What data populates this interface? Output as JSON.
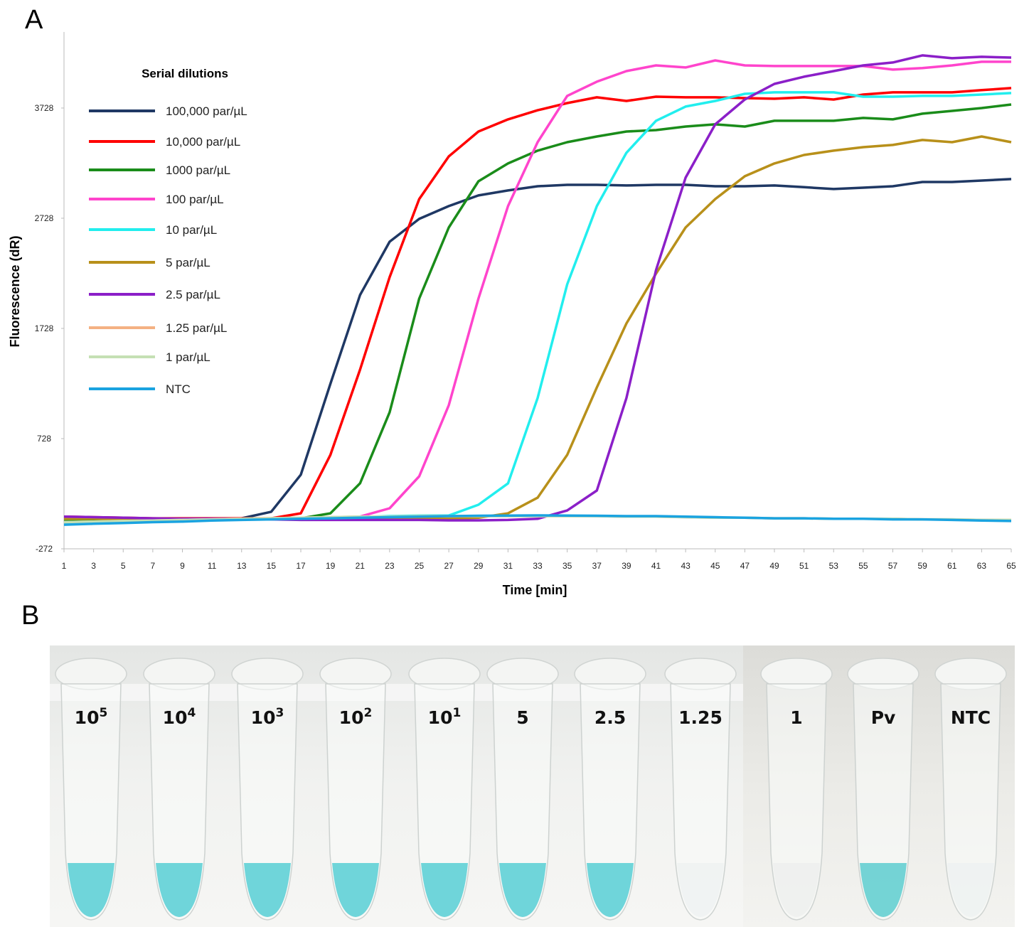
{
  "panel_labels": [
    "A",
    "B"
  ],
  "chart_data": {
    "type": "line",
    "xlabel": "Time  [min]",
    "ylabel": "Fluorescence  (dR)",
    "legend_title": "Serial dilutions",
    "x": [
      1,
      3,
      5,
      7,
      9,
      11,
      13,
      15,
      17,
      19,
      21,
      23,
      25,
      27,
      29,
      31,
      33,
      35,
      37,
      39,
      41,
      43,
      45,
      47,
      49,
      51,
      53,
      55,
      57,
      59,
      61,
      63,
      65
    ],
    "xlim": [
      1,
      65
    ],
    "xticks": [
      1,
      3,
      5,
      7,
      9,
      11,
      13,
      15,
      17,
      19,
      21,
      23,
      25,
      27,
      29,
      31,
      33,
      35,
      37,
      39,
      41,
      43,
      45,
      47,
      49,
      51,
      53,
      55,
      57,
      59,
      61,
      63,
      65
    ],
    "ylim": [
      -272,
      4418
    ],
    "yticks": [
      -272,
      728,
      1728,
      2728,
      3728
    ],
    "series": [
      {
        "name": "100,000 par/µL",
        "color": "#1f3864",
        "values": [
          -30,
          -20,
          -10,
          -5,
          0,
          0,
          5,
          64,
          400,
          1225,
          2031,
          2515,
          2722,
          2838,
          2935,
          2980,
          3018,
          3031,
          3031,
          3025,
          3031,
          3031,
          3018,
          3018,
          3025,
          3010,
          2993,
          3005,
          3018,
          3057,
          3057,
          3070,
          3083
        ]
      },
      {
        "name": "10,000 par/µL",
        "color": "#ff0000",
        "values": [
          20,
          15,
          10,
          5,
          5,
          5,
          5,
          5,
          50,
          580,
          1354,
          2193,
          2902,
          3289,
          3515,
          3625,
          3708,
          3773,
          3825,
          3792,
          3831,
          3825,
          3825,
          3818,
          3812,
          3825,
          3805,
          3850,
          3870,
          3870,
          3870,
          3890,
          3909
        ]
      },
      {
        "name": "1000 par/µL",
        "color": "#1a8c1a",
        "values": [
          -20,
          -10,
          0,
          0,
          0,
          0,
          0,
          0,
          5,
          50,
          322,
          967,
          1999,
          2644,
          3063,
          3225,
          3341,
          3418,
          3470,
          3515,
          3528,
          3560,
          3580,
          3560,
          3612,
          3612,
          3612,
          3638,
          3625,
          3677,
          3702,
          3728,
          3760
        ]
      },
      {
        "name": "100 par/µL",
        "color": "#ff44cc",
        "values": [
          0,
          0,
          0,
          0,
          0,
          0,
          0,
          0,
          0,
          0,
          20,
          96,
          386,
          1031,
          1999,
          2838,
          3418,
          3838,
          3967,
          4063,
          4115,
          4096,
          4160,
          4115,
          4109,
          4109,
          4109,
          4109,
          4077,
          4090,
          4115,
          4148,
          4148
        ]
      },
      {
        "name": "10 par/µL",
        "color": "#22eeee",
        "values": [
          -40,
          -30,
          -20,
          -15,
          -10,
          -5,
          0,
          5,
          10,
          10,
          15,
          25,
          30,
          30,
          128,
          322,
          1096,
          2128,
          2838,
          3322,
          3612,
          3741,
          3792,
          3857,
          3870,
          3870,
          3870,
          3831,
          3831,
          3838,
          3838,
          3850,
          3864
        ]
      },
      {
        "name": "5 par/µL",
        "color": "#b8901a",
        "values": [
          0,
          0,
          0,
          0,
          0,
          0,
          0,
          0,
          0,
          0,
          0,
          0,
          0,
          0,
          10,
          50,
          192,
          580,
          1193,
          1773,
          2225,
          2644,
          2902,
          3109,
          3225,
          3302,
          3341,
          3373,
          3393,
          3438,
          3418,
          3470,
          3418
        ]
      },
      {
        "name": "2.5 par/µL",
        "color": "#8b1fc8",
        "values": [
          20,
          15,
          10,
          5,
          0,
          0,
          0,
          -5,
          -10,
          -10,
          -10,
          -10,
          -10,
          -14,
          -14,
          -10,
          0,
          76,
          257,
          1096,
          2257,
          3096,
          3580,
          3806,
          3947,
          4012,
          4063,
          4115,
          4141,
          4206,
          4180,
          4193,
          4186
        ]
      },
      {
        "name": "1.25 par/µL",
        "color": "#f4b183",
        "values": [
          -30,
          -25,
          -20,
          -15,
          -10,
          -5,
          0,
          5,
          10,
          15,
          20,
          20,
          25,
          25,
          25,
          25,
          25,
          25,
          25,
          20,
          20,
          15,
          10,
          10,
          5,
          5,
          0,
          0,
          0,
          -5,
          -5,
          -10,
          -10
        ]
      },
      {
        "name": "1  par/µL",
        "color": "#c5e0b4",
        "values": [
          -30,
          -25,
          -20,
          -15,
          -10,
          -5,
          0,
          5,
          10,
          15,
          20,
          20,
          25,
          25,
          25,
          25,
          25,
          25,
          25,
          20,
          20,
          15,
          10,
          10,
          5,
          5,
          0,
          0,
          0,
          -5,
          -5,
          -10,
          -10
        ]
      },
      {
        "name": "NTC",
        "color": "#1aa3e0",
        "values": [
          -53,
          -45,
          -38,
          -30,
          -25,
          -15,
          -10,
          -5,
          0,
          5,
          10,
          15,
          20,
          25,
          28,
          30,
          31,
          30,
          28,
          25,
          25,
          20,
          15,
          10,
          5,
          5,
          0,
          0,
          -5,
          -5,
          -10,
          -15,
          -20
        ]
      }
    ]
  },
  "photo": {
    "tubes": [
      {
        "text": "10",
        "sup": "5",
        "color": "#5fd0d6"
      },
      {
        "text": "10",
        "sup": "4",
        "color": "#5fd0d6"
      },
      {
        "text": "10",
        "sup": "3",
        "color": "#5fd0d6"
      },
      {
        "text": "10",
        "sup": "2",
        "color": "#5fd0d6"
      },
      {
        "text": "10",
        "sup": "1",
        "color": "#5fd0d6"
      },
      {
        "text": "5",
        "color": "#5fd0d6"
      },
      {
        "text": "2.5",
        "color": "#5fd0d6"
      },
      {
        "text": "1.25",
        "color": "#eef2f2"
      },
      {
        "text": "1",
        "color": "#eef0ee"
      },
      {
        "text": "Pv",
        "color": "#66cfd2"
      },
      {
        "text": "NTC",
        "color": "#eef2f2"
      }
    ]
  }
}
